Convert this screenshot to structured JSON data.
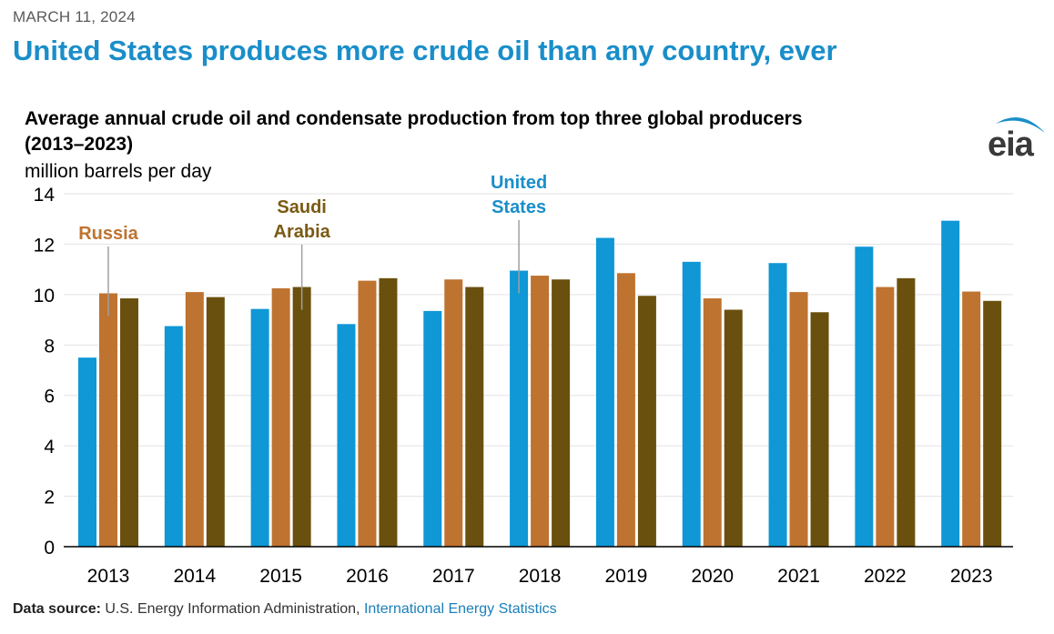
{
  "header": {
    "date": "MARCH 11, 2024",
    "headline": "United States produces more crude oil than any country, ever"
  },
  "logo": {
    "text": "eia",
    "arc_color": "#1a8ec9"
  },
  "footer": {
    "source_label": "Data source:",
    "source_text": "U.S. Energy Information Administration,",
    "source_link": "International Energy Statistics"
  },
  "chart_data": {
    "type": "bar",
    "title_line1": "Average annual crude oil and condensate production from top three global producers",
    "title_line2": "(2013–2023)",
    "ylabel": "million barrels per day",
    "xlabel": "",
    "ylim": [
      0,
      14
    ],
    "yticks": [
      0,
      2,
      4,
      6,
      8,
      10,
      12,
      14
    ],
    "grid": true,
    "legend": "direct-labels",
    "categories": [
      "2013",
      "2014",
      "2015",
      "2016",
      "2017",
      "2018",
      "2019",
      "2020",
      "2021",
      "2022",
      "2023"
    ],
    "series": [
      {
        "name": "United States",
        "label_lines": [
          "United",
          "States"
        ],
        "color": "#0f97d6",
        "label_color": "#1a8ec9",
        "label_year": "2018",
        "values": [
          7.5,
          8.75,
          9.43,
          8.83,
          9.35,
          10.95,
          12.25,
          11.3,
          11.25,
          11.9,
          12.93
        ]
      },
      {
        "name": "Russia",
        "label_lines": [
          "Russia"
        ],
        "color": "#be7330",
        "label_color": "#be7330",
        "label_year": "2013",
        "values": [
          10.05,
          10.1,
          10.25,
          10.55,
          10.6,
          10.75,
          10.85,
          9.85,
          10.1,
          10.3,
          10.12
        ]
      },
      {
        "name": "Saudi Arabia",
        "label_lines": [
          "Saudi",
          "Arabia"
        ],
        "color": "#6a500e",
        "label_color": "#7a5a14",
        "label_year": "2015",
        "values": [
          9.85,
          9.9,
          10.3,
          10.65,
          10.3,
          10.6,
          9.95,
          9.4,
          9.3,
          10.65,
          9.75
        ]
      }
    ]
  }
}
